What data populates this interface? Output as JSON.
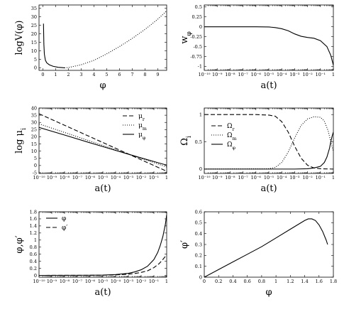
{
  "chart_data": [
    {
      "type": "line",
      "panel": "top-left",
      "xlabel": "φ",
      "ylabel": "logV(φ)",
      "xlim": [
        -0.3,
        9.7
      ],
      "ylim": [
        -1.5,
        37
      ],
      "xticks": [
        0,
        1,
        2,
        3,
        4,
        5,
        6,
        7,
        8,
        9
      ],
      "yticks": [
        0,
        5,
        10,
        15,
        20,
        25,
        30,
        35
      ],
      "xticklabels": [
        "0",
        "1",
        "2",
        "3",
        "4",
        "5",
        "6",
        "7",
        "8",
        "9"
      ],
      "yticklabels": [
        "0",
        "5",
        "10",
        "15",
        "20",
        "25",
        "30",
        "35"
      ],
      "xscale": "linear",
      "series": [
        {
          "style": "solid",
          "x": [
            0.05,
            0.08,
            0.12,
            0.2,
            0.3,
            0.5,
            0.8,
            1.2,
            1.7
          ],
          "y": [
            26,
            14,
            8,
            4.5,
            3,
            1.8,
            0.9,
            0.3,
            0
          ]
        },
        {
          "style": "dotted",
          "x": [
            1.7,
            2.0,
            3.0,
            4.0,
            5.0,
            6.0,
            7.0,
            8.0,
            9.0,
            9.7
          ],
          "y": [
            0,
            0.15,
            1.8,
            4.4,
            8.2,
            12.5,
            17.3,
            22.6,
            28.6,
            33.5
          ]
        }
      ]
    },
    {
      "type": "line",
      "panel": "top-right",
      "xlabel": "a(t)",
      "ylabel": "w_φ",
      "xlim": [
        -10,
        0
      ],
      "ylim": [
        -1.1,
        0.55
      ],
      "xscale": "log",
      "xticks": [
        -10,
        -9,
        -8,
        -7,
        -6,
        -5,
        -4,
        -3,
        -2,
        -1,
        0
      ],
      "xticklabels": [
        "10⁻¹⁰",
        "10⁻⁹",
        "10⁻⁸",
        "10⁻⁷",
        "10⁻⁶",
        "10⁻⁵",
        "10⁻⁴",
        "10⁻³",
        "10⁻²",
        "10⁻¹",
        "1"
      ],
      "yticks": [
        -1,
        -0.75,
        -0.5,
        -0.25,
        0,
        0.25,
        0.5
      ],
      "yticklabels": [
        "-1",
        "-0.75",
        "-0.5",
        "-0.25",
        "0",
        "0.25",
        "0.5"
      ],
      "series": [
        {
          "style": "solid",
          "x": [
            -10,
            -6,
            -5,
            -4.5,
            -4,
            -3.5,
            -3,
            -2.5,
            -2,
            -1.5,
            -1,
            -0.5,
            -0.2,
            0
          ],
          "y": [
            0,
            0,
            -0.005,
            -0.02,
            -0.05,
            -0.1,
            -0.18,
            -0.24,
            -0.27,
            -0.29,
            -0.35,
            -0.5,
            -0.72,
            -0.97
          ]
        }
      ]
    },
    {
      "type": "line",
      "panel": "middle-left",
      "xlabel": "a(t)",
      "ylabel": "log μ_i",
      "xlim": [
        -10,
        0
      ],
      "ylim": [
        -5.5,
        40
      ],
      "xscale": "log",
      "xticks": [
        -10,
        -9,
        -8,
        -7,
        -6,
        -5,
        -4,
        -3,
        -2,
        -1,
        0
      ],
      "xticklabels": [
        "10⁻¹⁰",
        "10⁻⁹",
        "10⁻⁸",
        "10⁻⁷",
        "10⁻⁶",
        "10⁻⁵",
        "10⁻⁴",
        "10⁻³",
        "10⁻²",
        "10⁻¹",
        "1"
      ],
      "yticks": [
        -5,
        0,
        5,
        10,
        15,
        20,
        25,
        30,
        35,
        40
      ],
      "yticklabels": [
        "-5",
        "0",
        "5",
        "10",
        "15",
        "20",
        "25",
        "30",
        "35",
        "40"
      ],
      "legend": "top-right",
      "series": [
        {
          "name": "μ_r",
          "style": "dashed",
          "x": [
            -10,
            0
          ],
          "y": [
            36,
            -4
          ]
        },
        {
          "name": "μ_m",
          "style": "dotted",
          "x": [
            -10,
            0
          ],
          "y": [
            29,
            -1
          ]
        },
        {
          "name": "μ_φ",
          "style": "solid",
          "x": [
            -10,
            -8,
            -6,
            -4,
            -3,
            -2,
            -1,
            -0.5,
            0
          ],
          "y": [
            26.5,
            21.2,
            15.8,
            10.5,
            7.9,
            5.3,
            2.8,
            1.5,
            0.3
          ]
        }
      ]
    },
    {
      "type": "line",
      "panel": "middle-right",
      "xlabel": "a(t)",
      "ylabel": "Ω_i",
      "xlim": [
        -10,
        0
      ],
      "ylim": [
        -0.08,
        1.12
      ],
      "xscale": "log",
      "xticks": [
        -10,
        -9,
        -8,
        -7,
        -6,
        -5,
        -4,
        -3,
        -2,
        -1,
        0
      ],
      "xticklabels": [
        "10⁻¹⁰",
        "10⁻⁹",
        "10⁻⁸",
        "10⁻⁷",
        "10⁻⁶",
        "10⁻⁵",
        "10⁻⁴",
        "10⁻³",
        "10⁻²",
        "10⁻¹",
        "1"
      ],
      "yticks": [
        0,
        0.5,
        1
      ],
      "yticklabels": [
        "0",
        "0.5",
        "1"
      ],
      "legend": "center-left",
      "series": [
        {
          "name": "Ω_r",
          "style": "dashed",
          "x": [
            -10,
            -6,
            -5,
            -4.5,
            -4,
            -3.5,
            -3,
            -2.5,
            -2,
            -1.5,
            -1,
            0
          ],
          "y": [
            1,
            1,
            0.99,
            0.97,
            0.87,
            0.68,
            0.42,
            0.2,
            0.07,
            0.02,
            0.005,
            0
          ]
        },
        {
          "name": "Ω_m",
          "style": "dotted",
          "x": [
            -10,
            -5,
            -4.5,
            -4,
            -3.5,
            -3,
            -2.5,
            -2,
            -1.5,
            -1,
            -0.7,
            -0.4,
            -0.2,
            0
          ],
          "y": [
            0,
            0.005,
            0.03,
            0.12,
            0.31,
            0.57,
            0.8,
            0.92,
            0.96,
            0.95,
            0.88,
            0.7,
            0.5,
            0.32
          ]
        },
        {
          "name": "Ω_φ",
          "style": "solid",
          "x": [
            -10,
            -3,
            -2,
            -1.5,
            -1,
            -0.7,
            -0.5,
            -0.3,
            -0.2,
            -0.1,
            0
          ],
          "y": [
            0,
            0,
            0.005,
            0.02,
            0.05,
            0.12,
            0.22,
            0.38,
            0.5,
            0.6,
            0.68
          ]
        }
      ]
    },
    {
      "type": "line",
      "panel": "bottom-left",
      "xlabel": "a(t)",
      "ylabel": "φ,φ′",
      "xlim": [
        -10,
        0
      ],
      "ylim": [
        -0.05,
        1.8
      ],
      "xscale": "log",
      "xticks": [
        -10,
        -9,
        -8,
        -7,
        -6,
        -5,
        -4,
        -3,
        -2,
        -1,
        0
      ],
      "xticklabels": [
        "10⁻¹⁰",
        "10⁻⁹",
        "10⁻⁸",
        "10⁻⁷",
        "10⁻⁶",
        "10⁻⁵",
        "10⁻⁴",
        "10⁻³",
        "10⁻²",
        "10⁻¹",
        "1"
      ],
      "yticks": [
        0,
        0.2,
        0.4,
        0.6,
        0.8,
        1,
        1.2,
        1.4,
        1.6,
        1.8
      ],
      "yticklabels": [
        "0",
        "0.2",
        "0.4",
        "0.6",
        "0.8",
        "1",
        "1.2",
        "1.4",
        "1.6",
        "1.8"
      ],
      "legend": "top-left",
      "series": [
        {
          "name": "φ",
          "style": "solid",
          "x": [
            -10,
            -6,
            -5,
            -4,
            -3,
            -2.5,
            -2,
            -1.5,
            -1,
            -0.7,
            -0.5,
            -0.3,
            -0.1,
            0
          ],
          "y": [
            0,
            0.005,
            0.01,
            0.025,
            0.06,
            0.1,
            0.16,
            0.26,
            0.45,
            0.65,
            0.85,
            1.1,
            1.45,
            1.72
          ]
        },
        {
          "name": "φ′",
          "style": "dashed",
          "x": [
            -10,
            -6,
            -5,
            -4,
            -3,
            -2.5,
            -2,
            -1.5,
            -1,
            -0.6,
            -0.3,
            -0.1,
            0
          ],
          "y": [
            0,
            0.003,
            0.006,
            0.015,
            0.035,
            0.055,
            0.085,
            0.13,
            0.22,
            0.33,
            0.45,
            0.54,
            0.52
          ]
        }
      ]
    },
    {
      "type": "line",
      "panel": "bottom-right",
      "xlabel": "φ",
      "ylabel": "φ′",
      "xlim": [
        0,
        1.8
      ],
      "ylim": [
        0,
        0.6
      ],
      "xscale": "linear",
      "xticks": [
        0,
        0.2,
        0.4,
        0.6,
        0.8,
        1,
        1.2,
        1.4,
        1.6,
        1.8
      ],
      "xticklabels": [
        "0",
        "0.2",
        "0.4",
        "0.6",
        "0.8",
        "1",
        "1.2",
        "1.4",
        "1.6",
        "1.8"
      ],
      "yticks": [
        0,
        0.1,
        0.2,
        0.3,
        0.4,
        0.5,
        0.6
      ],
      "yticklabels": [
        "0",
        "0.1",
        "0.2",
        "0.3",
        "0.4",
        "0.5",
        "0.6"
      ],
      "series": [
        {
          "style": "solid",
          "x": [
            0,
            0.2,
            0.4,
            0.6,
            0.8,
            1.0,
            1.2,
            1.3,
            1.4,
            1.45,
            1.5,
            1.55,
            1.6,
            1.65,
            1.7,
            1.72
          ],
          "y": [
            0,
            0.07,
            0.14,
            0.21,
            0.28,
            0.36,
            0.44,
            0.48,
            0.52,
            0.535,
            0.535,
            0.52,
            0.48,
            0.42,
            0.34,
            0.3
          ]
        }
      ]
    }
  ]
}
